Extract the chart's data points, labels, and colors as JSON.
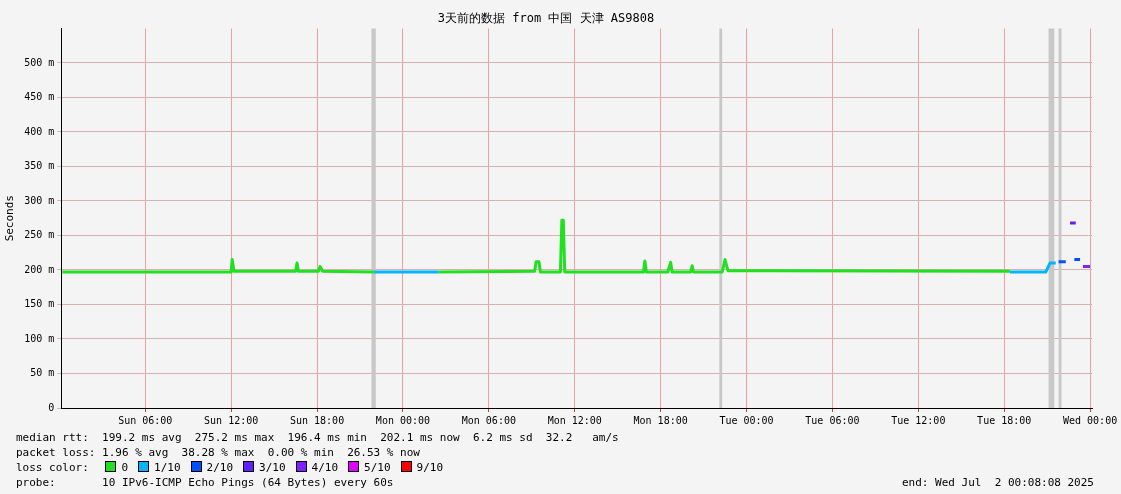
{
  "chart_data": {
    "type": "line",
    "title": "3天前的数据 from 中国 天津 AS9808",
    "ylabel": "Seconds",
    "xlim": [
      "2025-06-29T00:08",
      "2025-07-02T00:08"
    ],
    "xticks": [
      {
        "value": "2025-06-29T06:00",
        "label": "Sun 06:00"
      },
      {
        "value": "2025-06-29T12:00",
        "label": "Sun 12:00"
      },
      {
        "value": "2025-06-29T18:00",
        "label": "Sun 18:00"
      },
      {
        "value": "2025-06-30T00:00",
        "label": "Mon 00:00"
      },
      {
        "value": "2025-06-30T06:00",
        "label": "Mon 06:00"
      },
      {
        "value": "2025-06-30T12:00",
        "label": "Mon 12:00"
      },
      {
        "value": "2025-06-30T18:00",
        "label": "Mon 18:00"
      },
      {
        "value": "2025-07-01T00:00",
        "label": "Tue 00:00"
      },
      {
        "value": "2025-07-01T06:00",
        "label": "Tue 06:00"
      },
      {
        "value": "2025-07-01T12:00",
        "label": "Tue 12:00"
      },
      {
        "value": "2025-07-01T18:00",
        "label": "Tue 18:00"
      },
      {
        "value": "2025-07-02T00:00",
        "label": "Wed 00:00"
      }
    ],
    "ylim": [
      0,
      550
    ],
    "yticks": [
      0,
      {
        "value": 50,
        "label": "50 m"
      },
      {
        "value": 100,
        "label": "100 m"
      },
      {
        "value": 150,
        "label": "150 m"
      },
      {
        "value": 200,
        "label": "200 m"
      },
      {
        "value": 250,
        "label": "250 m"
      },
      {
        "value": 300,
        "label": "300 m"
      },
      {
        "value": 350,
        "label": "350 m"
      },
      {
        "value": 400,
        "label": "400 m"
      },
      {
        "value": 450,
        "label": "450 m"
      },
      {
        "value": 500,
        "label": "500 m"
      }
    ],
    "grid": true,
    "legend": "bottom",
    "legend_title": "loss color:",
    "marker": "none",
    "line_style": "solid",
    "series": [
      {
        "name": "0",
        "color": "#20e020",
        "x": [
          "2025-06-29T00:12",
          "2025-06-29T11:36",
          "2025-06-29T12:00",
          "2025-06-29T12:04",
          "2025-06-29T12:12",
          "2025-06-29T16:30",
          "2025-06-29T16:36",
          "2025-06-29T16:42",
          "2025-06-29T18:06",
          "2025-06-29T18:12",
          "2025-06-29T18:24",
          "2025-06-29T22:00",
          "2025-06-30T00:00",
          "2025-06-30T02:30",
          "2025-06-30T09:12",
          "2025-06-30T09:18",
          "2025-06-30T09:30",
          "2025-06-30T09:36",
          "2025-06-30T11:00",
          "2025-06-30T11:06",
          "2025-06-30T11:12",
          "2025-06-30T11:18",
          "2025-06-30T16:48",
          "2025-06-30T16:54",
          "2025-06-30T17:00",
          "2025-06-30T18:30",
          "2025-06-30T18:42",
          "2025-06-30T18:48",
          "2025-06-30T20:06",
          "2025-06-30T20:12",
          "2025-06-30T20:18",
          "2025-06-30T22:18",
          "2025-06-30T22:30",
          "2025-06-30T22:42",
          "2025-07-01T18:24"
        ],
        "values": [
          197,
          197,
          197,
          215,
          198,
          198,
          210,
          198,
          198,
          205,
          198,
          197,
          null,
          197,
          198,
          212,
          212,
          197,
          197,
          272,
          272,
          197,
          197,
          213,
          197,
          197,
          211,
          197,
          197,
          206,
          197,
          197,
          215,
          199,
          198
        ]
      },
      {
        "name": "1/10",
        "color": "#00b4ff",
        "x": [
          "2025-06-29T22:00",
          "2025-06-30T02:30",
          "2025-06-30T02:36",
          "2025-07-01T18:24",
          "2025-07-01T20:54",
          "2025-07-01T21:12",
          "2025-07-01T21:36"
        ],
        "values": [
          197,
          197,
          null,
          197,
          197,
          210,
          210
        ]
      },
      {
        "name": "2/10",
        "color": "#0050ff",
        "x": [
          "2025-07-01T21:48",
          "2025-07-01T22:18",
          "2025-07-01T22:30",
          "2025-07-01T22:54",
          "2025-07-01T23:18"
        ],
        "values": [
          212,
          212,
          null,
          215,
          215
        ]
      },
      {
        "name": "3/10",
        "color": "#6020ff",
        "x": [
          "2025-07-01T22:36",
          "2025-07-01T23:00"
        ],
        "values": [
          268,
          268
        ]
      },
      {
        "name": "4/10",
        "color": "#8020ff",
        "x": [
          "2025-07-01T23:30",
          "2025-07-02T00:00"
        ],
        "values": [
          205,
          205
        ]
      },
      {
        "name": "5/10",
        "color": "#e000ff"
      },
      {
        "name": "9/10",
        "color": "#ff0000"
      }
    ],
    "bands": [
      {
        "axis": "x",
        "from": "2025-06-29T21:48",
        "to": "2025-06-29T22:06",
        "color": "#c8c8c8"
      },
      {
        "axis": "x",
        "from": "2025-06-30T22:06",
        "to": "2025-06-30T22:18",
        "color": "#c8c8c8"
      },
      {
        "axis": "x",
        "from": "2025-07-01T21:06",
        "to": "2025-07-01T21:30",
        "color": "#c8c8c8"
      },
      {
        "axis": "x",
        "from": "2025-07-01T21:48",
        "to": "2025-07-01T22:00",
        "color": "#c8c8c8"
      }
    ],
    "annotations": [
      "median rtt:  199.2 ms avg  275.2 ms max  196.4 ms min  202.1 ms now  6.2 ms sd  32.2   am/s",
      "packet loss: 1.96 % avg  38.28 % max  0.00 % min  26.53 % now",
      "probe:       10 IPv6-ICMP Echo Pings (64 Bytes) every 60s",
      "end: Wed Jul  2 00:08:08 2025"
    ]
  }
}
